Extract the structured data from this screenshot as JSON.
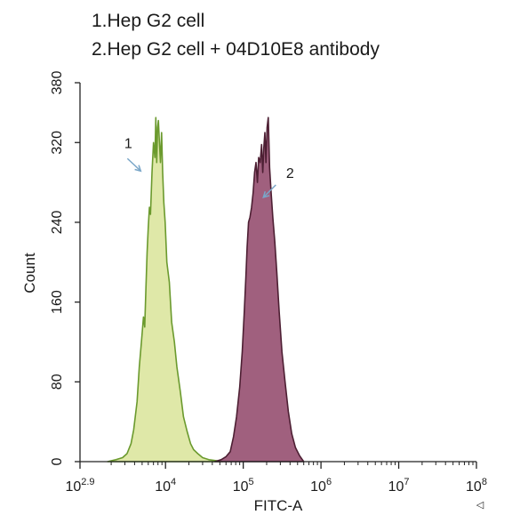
{
  "chart_data": {
    "type": "area",
    "title": "",
    "legend": [
      "1.Hep G2 cell",
      "2.Hep G2 cell + 04D10E8 antibody"
    ],
    "legend_placement": "top-left",
    "xlabel": "FITC-A",
    "ylabel": "Count",
    "x_scale": "log",
    "xlim": [
      794,
      100000000
    ],
    "ylim": [
      0,
      380
    ],
    "x_ticks": [
      {
        "value": 794,
        "base": "10",
        "exp": "2.9"
      },
      {
        "value": 10000,
        "base": "10",
        "exp": "4"
      },
      {
        "value": 100000,
        "base": "10",
        "exp": "5"
      },
      {
        "value": 1000000,
        "base": "10",
        "exp": "6"
      },
      {
        "value": 10000000,
        "base": "10",
        "exp": "7"
      },
      {
        "value": 100000000,
        "base": "10",
        "exp": "8"
      }
    ],
    "y_ticks": [
      "0",
      "80",
      "160",
      "240",
      "320",
      "380"
    ],
    "grid": false,
    "series": [
      {
        "name": "1",
        "color_line": "#6b9a2e",
        "color_fill": "#dfe8a8",
        "x": [
          1800,
          2300,
          2800,
          3200,
          3600,
          3900,
          4300,
          4600,
          4900,
          5200,
          5400,
          5600,
          5800,
          6000,
          6200,
          6400,
          6700,
          7000,
          7300,
          7500,
          7700,
          7900,
          8100,
          8300,
          8600,
          8900,
          9200,
          9500,
          9900,
          10400,
          11200,
          12000,
          13000,
          14000,
          15500,
          17000,
          19000,
          21000,
          23000,
          26000,
          30000,
          36000,
          45000,
          54000
        ],
        "y": [
          0,
          2,
          4,
          8,
          18,
          32,
          60,
          95,
          120,
          145,
          135,
          175,
          210,
          235,
          255,
          248,
          290,
          320,
          305,
          345,
          300,
          335,
          342,
          325,
          300,
          330,
          290,
          260,
          240,
          200,
          180,
          140,
          120,
          95,
          70,
          45,
          30,
          18,
          12,
          8,
          4,
          2,
          1,
          0
        ]
      },
      {
        "name": "2",
        "color_line": "#4d1f33",
        "color_fill": "#a0607e",
        "x": [
          43000,
          52000,
          60000,
          68000,
          75000,
          82000,
          90000,
          97000,
          103000,
          108000,
          112000,
          117000,
          122000,
          128000,
          134000,
          140000,
          146000,
          152000,
          158000,
          165000,
          172000,
          178000,
          184000,
          190000,
          196000,
          203000,
          210000,
          218000,
          228000,
          240000,
          255000,
          270000,
          290000,
          315000,
          345000,
          380000,
          420000,
          470000,
          530000,
          600000
        ],
        "y": [
          0,
          2,
          5,
          10,
          25,
          45,
          75,
          110,
          150,
          185,
          215,
          240,
          245,
          255,
          270,
          290,
          300,
          280,
          305,
          300,
          318,
          290,
          315,
          330,
          300,
          335,
          345,
          295,
          270,
          245,
          220,
          190,
          150,
          110,
          80,
          50,
          28,
          14,
          6,
          0
        ]
      }
    ],
    "annotations": [
      {
        "text": "1",
        "x": 4800,
        "y": 320,
        "arrow": true
      },
      {
        "text": "2",
        "x": 360000,
        "y": 290,
        "arrow": true
      }
    ],
    "arrow_color": "#7aa6c8"
  }
}
